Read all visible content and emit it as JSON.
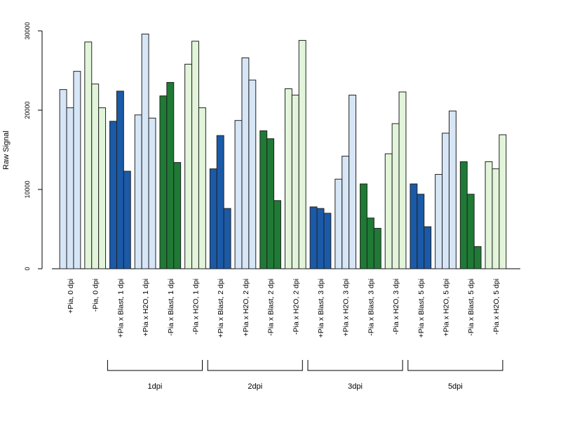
{
  "chart_data": {
    "type": "bar",
    "title": "",
    "xlabel": "",
    "ylabel": "Raw Signal",
    "ylim": [
      0,
      30000
    ],
    "yticks": [
      "0",
      "10000",
      "20000",
      "30000"
    ],
    "categories": [
      "+Pia, 0 dpi",
      "-Pia, 0 dpi",
      "+Pia x Blast, 1 dpi",
      "+Pia x H2O, 1 dpi",
      "-Pia x Blast, 1 dpi",
      "-Pia x H2O, 1 dpi",
      "+Pia x Blast, 2 dpi",
      "+Pia x H2O, 2 dpi",
      "-Pia x Blast, 2 dpi",
      "-Pia x H2O, 2 dpi",
      "+Pia x Blast, 3 dpi",
      "+Pia x H2O, 3 dpi",
      "-Pia x Blast, 3 dpi",
      "-Pia x H2O, 3 dpi",
      "+Pia x Blast, 5 dpi",
      "+Pia x H2O, 5 dpi",
      "-Pia x Blast, 5 dpi",
      "-Pia x H2O, 5 dpi"
    ],
    "values": [
      [
        22600,
        20300,
        24900
      ],
      [
        28600,
        23300,
        20300
      ],
      [
        18600,
        22400,
        12300
      ],
      [
        19400,
        29600,
        19000
      ],
      [
        21800,
        23500,
        13400
      ],
      [
        25800,
        28700,
        20300
      ],
      [
        12600,
        16800,
        7600
      ],
      [
        18700,
        26600,
        23800
      ],
      [
        17400,
        16400,
        8600
      ],
      [
        22700,
        21900,
        28800
      ],
      [
        7800,
        7600,
        7000
      ],
      [
        11300,
        14200,
        21900
      ],
      [
        10700,
        6400,
        5100
      ],
      [
        14500,
        18300,
        22300
      ],
      [
        10700,
        9400,
        5300
      ],
      [
        11900,
        17100,
        19900
      ],
      [
        13500,
        9400,
        2800
      ],
      [
        13500,
        12600,
        16900
      ]
    ],
    "bar_colors": [
      "#d6e6f7",
      "#e2f5da",
      "#1a5aa8",
      "#d6e6f7",
      "#1e7a34",
      "#e2f5da",
      "#1a5aa8",
      "#d6e6f7",
      "#1e7a34",
      "#e2f5da",
      "#1a5aa8",
      "#d6e6f7",
      "#1e7a34",
      "#e2f5da",
      "#1a5aa8",
      "#d6e6f7",
      "#1e7a34",
      "#e2f5da"
    ],
    "groups": [
      {
        "label": "1dpi",
        "start": 2,
        "end": 5
      },
      {
        "label": "2dpi",
        "start": 6,
        "end": 9
      },
      {
        "label": "3dpi",
        "start": 10,
        "end": 13
      },
      {
        "label": "5dpi",
        "start": 14,
        "end": 17
      }
    ]
  }
}
